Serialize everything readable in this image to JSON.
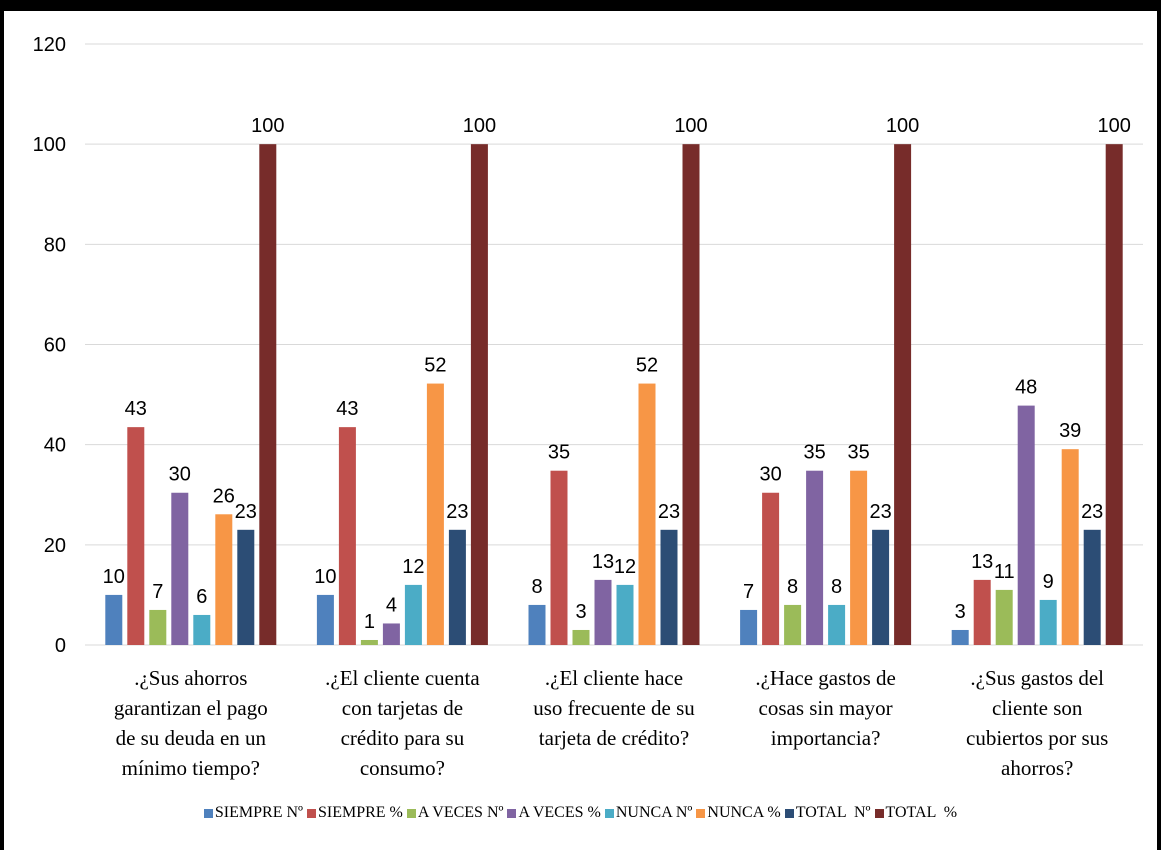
{
  "chart_data": {
    "type": "bar",
    "title": "",
    "xlabel": "",
    "ylabel": "",
    "ylim": [
      0,
      120
    ],
    "yticks": [
      0,
      20,
      40,
      60,
      80,
      100,
      120
    ],
    "grid": true,
    "legend_position": "bottom",
    "categories": [
      [
        ".¿Sus ahorros",
        "garantizan el pago",
        "de su deuda en un",
        "mínimo tiempo?"
      ],
      [
        ".¿El cliente cuenta",
        "con tarjetas de",
        "crédito para su",
        "consumo?"
      ],
      [
        ".¿El cliente hace",
        "uso frecuente de su",
        "tarjeta de crédito?"
      ],
      [
        ".¿Hace gastos de",
        "cosas sin mayor",
        "importancia?"
      ],
      [
        ".¿Sus gastos del",
        "cliente son",
        "cubiertos por sus",
        "ahorros?"
      ]
    ],
    "series": [
      {
        "name": "SIEMPRE Nº",
        "color": "#4F81BD",
        "values": [
          10,
          10,
          8,
          7,
          3
        ]
      },
      {
        "name": "SIEMPRE %",
        "color": "#C0504D",
        "values": [
          43.5,
          43.5,
          34.8,
          30.4,
          13
        ]
      },
      {
        "name": "A VECES Nº",
        "color": "#9BBB59",
        "values": [
          7,
          1,
          3,
          8,
          11
        ]
      },
      {
        "name": "A VECES %",
        "color": "#8064A2",
        "values": [
          30.4,
          4.3,
          13,
          34.8,
          47.8
        ]
      },
      {
        "name": "NUNCA Nº",
        "color": "#4BACC6",
        "values": [
          6,
          12,
          12,
          8,
          9
        ]
      },
      {
        "name": "NUNCA %",
        "color": "#F79646",
        "values": [
          26.1,
          52.2,
          52.2,
          34.8,
          39.1
        ]
      },
      {
        "name": "TOTAL  Nº",
        "color": "#2C4D75",
        "values": [
          23,
          23,
          23,
          23,
          23
        ]
      },
      {
        "name": "TOTAL  %",
        "color": "#772C2A",
        "values": [
          100,
          100,
          100,
          100,
          100
        ]
      }
    ],
    "data_labels": [
      [
        "10",
        "43",
        "7",
        "30",
        "6",
        "26",
        "23",
        "100"
      ],
      [
        "10",
        "43",
        "1",
        "4",
        "12",
        "52",
        "23",
        "100"
      ],
      [
        "8",
        "35",
        "3",
        "13",
        "12",
        "52",
        "23",
        "100"
      ],
      [
        "7",
        "30",
        "8",
        "35",
        "8",
        "35",
        "23",
        "100"
      ],
      [
        "3",
        "13",
        "11",
        "48",
        "9",
        "39",
        "23",
        "100"
      ]
    ]
  }
}
